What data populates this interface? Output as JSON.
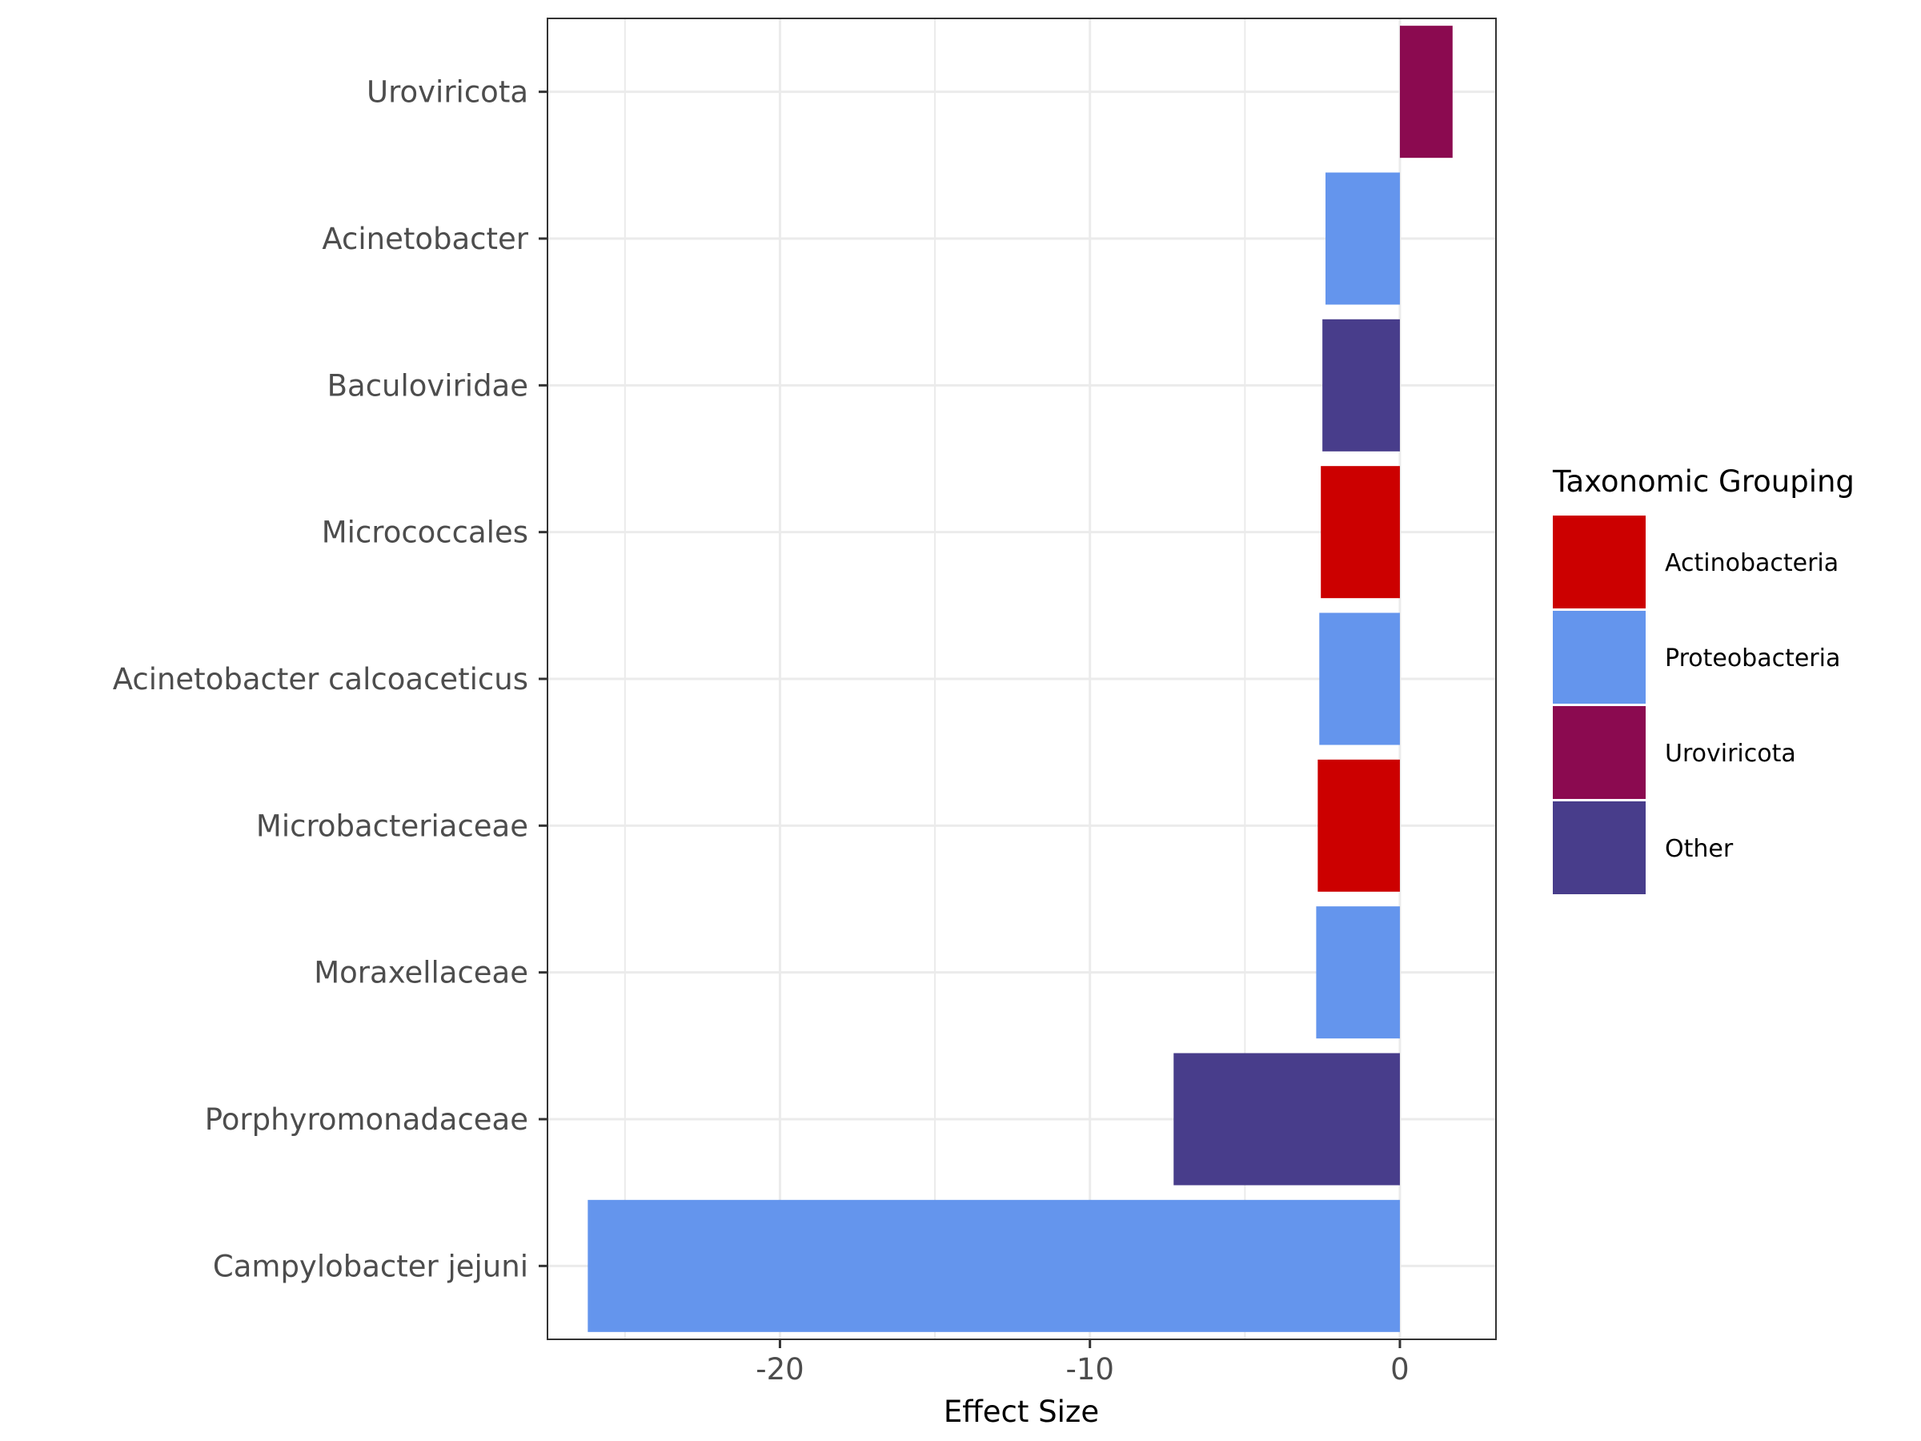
{
  "chart_data": {
    "type": "bar",
    "orientation": "horizontal",
    "categories": [
      "Uroviricota",
      "Acinetobacter",
      "Baculoviridae",
      "Micrococcales",
      "Acinetobacter calcoaceticus",
      "Microbacteriaceae",
      "Moraxellaceae",
      "Porphyromonadaceae",
      "Campylobacter jejuni"
    ],
    "values": [
      1.7,
      -2.4,
      -2.5,
      -2.55,
      -2.6,
      -2.65,
      -2.7,
      -7.3,
      -26.2
    ],
    "groups": [
      "Uroviricota",
      "Proteobacteria",
      "Other",
      "Actinobacteria",
      "Proteobacteria",
      "Actinobacteria",
      "Proteobacteria",
      "Other",
      "Proteobacteria"
    ],
    "xlabel": "Effect Size",
    "ylabel": "",
    "xlim": [
      -27.5,
      3.1
    ],
    "xticks": [
      -20,
      -10,
      0
    ],
    "xtick_labels": [
      "-20",
      "-10",
      "0"
    ],
    "grid": true,
    "legend": {
      "title": "Taxonomic Grouping",
      "position": "right",
      "entries": [
        {
          "label": "Actinobacteria",
          "color": "#cc0000"
        },
        {
          "label": "Proteobacteria",
          "color": "#6495ed"
        },
        {
          "label": "Uroviricota",
          "color": "#8b0a50"
        },
        {
          "label": "Other",
          "color": "#483d8b"
        }
      ]
    }
  }
}
